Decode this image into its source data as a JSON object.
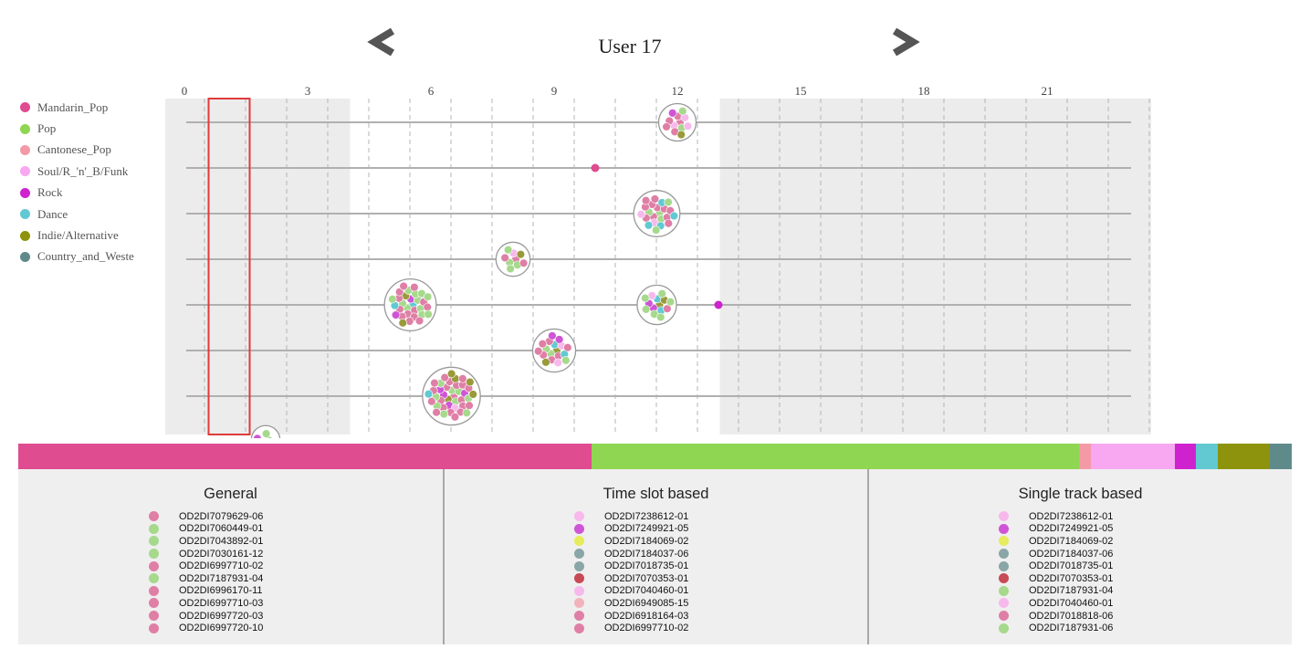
{
  "title": "User 17",
  "nav": {
    "prev": "chevron-left-icon",
    "next": "chevron-right-icon",
    "arrow_color": "#555555"
  },
  "legend": [
    {
      "label": "Mandarin_Pop",
      "color": "#df4c90"
    },
    {
      "label": "Pop",
      "color": "#8fd653"
    },
    {
      "label": "Cantonese_Pop",
      "color": "#f49aa7"
    },
    {
      "label": "Soul/R_'n'_B/Funk",
      "color": "#f8a8f0"
    },
    {
      "label": "Rock",
      "color": "#cf22cf"
    },
    {
      "label": "Dance",
      "color": "#62c9d3"
    },
    {
      "label": "Indie/Alternative",
      "color": "#8d930c"
    },
    {
      "label": "Country_and_Weste",
      "color": "#5f8a8a"
    }
  ],
  "timeline": {
    "tick_labels": [
      "0",
      "3",
      "6",
      "9",
      "12",
      "15",
      "18",
      "21"
    ],
    "hour_range": [
      0,
      24
    ],
    "shaded_ranges": [
      [
        0,
        4.5
      ],
      [
        13.5,
        24
      ]
    ],
    "selection_hours": [
      0.5,
      1.5
    ],
    "rows": [
      {
        "clusters": [
          {
            "hour": 12,
            "count": 12
          }
        ]
      },
      {
        "clusters": [
          {
            "hour": 10,
            "count": 1
          }
        ]
      },
      {
        "clusters": [
          {
            "hour": 11.5,
            "count": 22
          }
        ]
      },
      {
        "clusters": [
          {
            "hour": 8,
            "count": 9
          }
        ]
      },
      {
        "clusters": [
          {
            "hour": 5.5,
            "count": 30
          },
          {
            "hour": 11.5,
            "count": 14
          },
          {
            "hour": 13,
            "count": 1
          }
        ]
      },
      {
        "clusters": [
          {
            "hour": 9,
            "count": 18
          }
        ]
      },
      {
        "clusters": [
          {
            "hour": 6.5,
            "count": 40
          }
        ]
      },
      {
        "clusters": [
          {
            "hour": 1,
            "count": 5
          }
        ]
      }
    ]
  },
  "genre_distribution": [
    {
      "genre": "Mandarin_Pop",
      "share": 45,
      "color": "#df4c90"
    },
    {
      "genre": "Pop",
      "share": 38.3,
      "color": "#8fd653"
    },
    {
      "genre": "Cantonese_Pop",
      "share": 0.9,
      "color": "#f49aa7"
    },
    {
      "genre": "Soul/R_'n'_B/Funk",
      "share": 6.6,
      "color": "#f8a8f0"
    },
    {
      "genre": "Rock",
      "share": 1.7,
      "color": "#cf22cf"
    },
    {
      "genre": "Dance",
      "share": 1.7,
      "color": "#62c9d3"
    },
    {
      "genre": "Indie/Alternative",
      "share": 4.1,
      "color": "#8d930c"
    },
    {
      "genre": "Country_and_Weste",
      "share": 1.7,
      "color": "#5f8a8a"
    }
  ],
  "panels": [
    {
      "title": "General",
      "tracks": [
        {
          "id": "OD2DI7079629-06",
          "color": "#df7fa6"
        },
        {
          "id": "OD2DI7060449-01",
          "color": "#a6d98c"
        },
        {
          "id": "OD2DI7043892-01",
          "color": "#a6d98c"
        },
        {
          "id": "OD2DI7030161-12",
          "color": "#a6d98c"
        },
        {
          "id": "OD2DI6997710-02",
          "color": "#df7fa6"
        },
        {
          "id": "OD2DI7187931-04",
          "color": "#a6d98c"
        },
        {
          "id": "OD2DI6996170-11",
          "color": "#df7fa6"
        },
        {
          "id": "OD2DI6997710-03",
          "color": "#df7fa6"
        },
        {
          "id": "OD2DI6997720-03",
          "color": "#df7fa6"
        },
        {
          "id": "OD2DI6997720-10",
          "color": "#df7fa6"
        }
      ]
    },
    {
      "title": "Time slot based",
      "tracks": [
        {
          "id": "OD2DI7238612-01",
          "color": "#f7b9ec"
        },
        {
          "id": "OD2DI7249921-05",
          "color": "#cf55d6"
        },
        {
          "id": "OD2DI7184069-02",
          "color": "#e6ec5c"
        },
        {
          "id": "OD2DI7184037-06",
          "color": "#8aa6a6"
        },
        {
          "id": "OD2DI7018735-01",
          "color": "#8aa6a6"
        },
        {
          "id": "OD2DI7070353-01",
          "color": "#c74a55"
        },
        {
          "id": "OD2DI7040460-01",
          "color": "#f7b9ec"
        },
        {
          "id": "OD2DI6949085-15",
          "color": "#f2b3bb"
        },
        {
          "id": "OD2DI6918164-03",
          "color": "#df7fa6"
        },
        {
          "id": "OD2DI6997710-02",
          "color": "#df7fa6"
        }
      ]
    },
    {
      "title": "Single track based",
      "tracks": [
        {
          "id": "OD2DI7238612-01",
          "color": "#f7b9ec"
        },
        {
          "id": "OD2DI7249921-05",
          "color": "#cf55d6"
        },
        {
          "id": "OD2DI7184069-02",
          "color": "#e6ec5c"
        },
        {
          "id": "OD2DI7184037-06",
          "color": "#8aa6a6"
        },
        {
          "id": "OD2DI7018735-01",
          "color": "#8aa6a6"
        },
        {
          "id": "OD2DI7070353-01",
          "color": "#c74a55"
        },
        {
          "id": "OD2DI7187931-04",
          "color": "#a6d98c"
        },
        {
          "id": "OD2DI7040460-01",
          "color": "#f7b9ec"
        },
        {
          "id": "OD2DI7018818-06",
          "color": "#df7fa6"
        },
        {
          "id": "OD2DI7187931-06",
          "color": "#a6d98c"
        }
      ]
    }
  ]
}
